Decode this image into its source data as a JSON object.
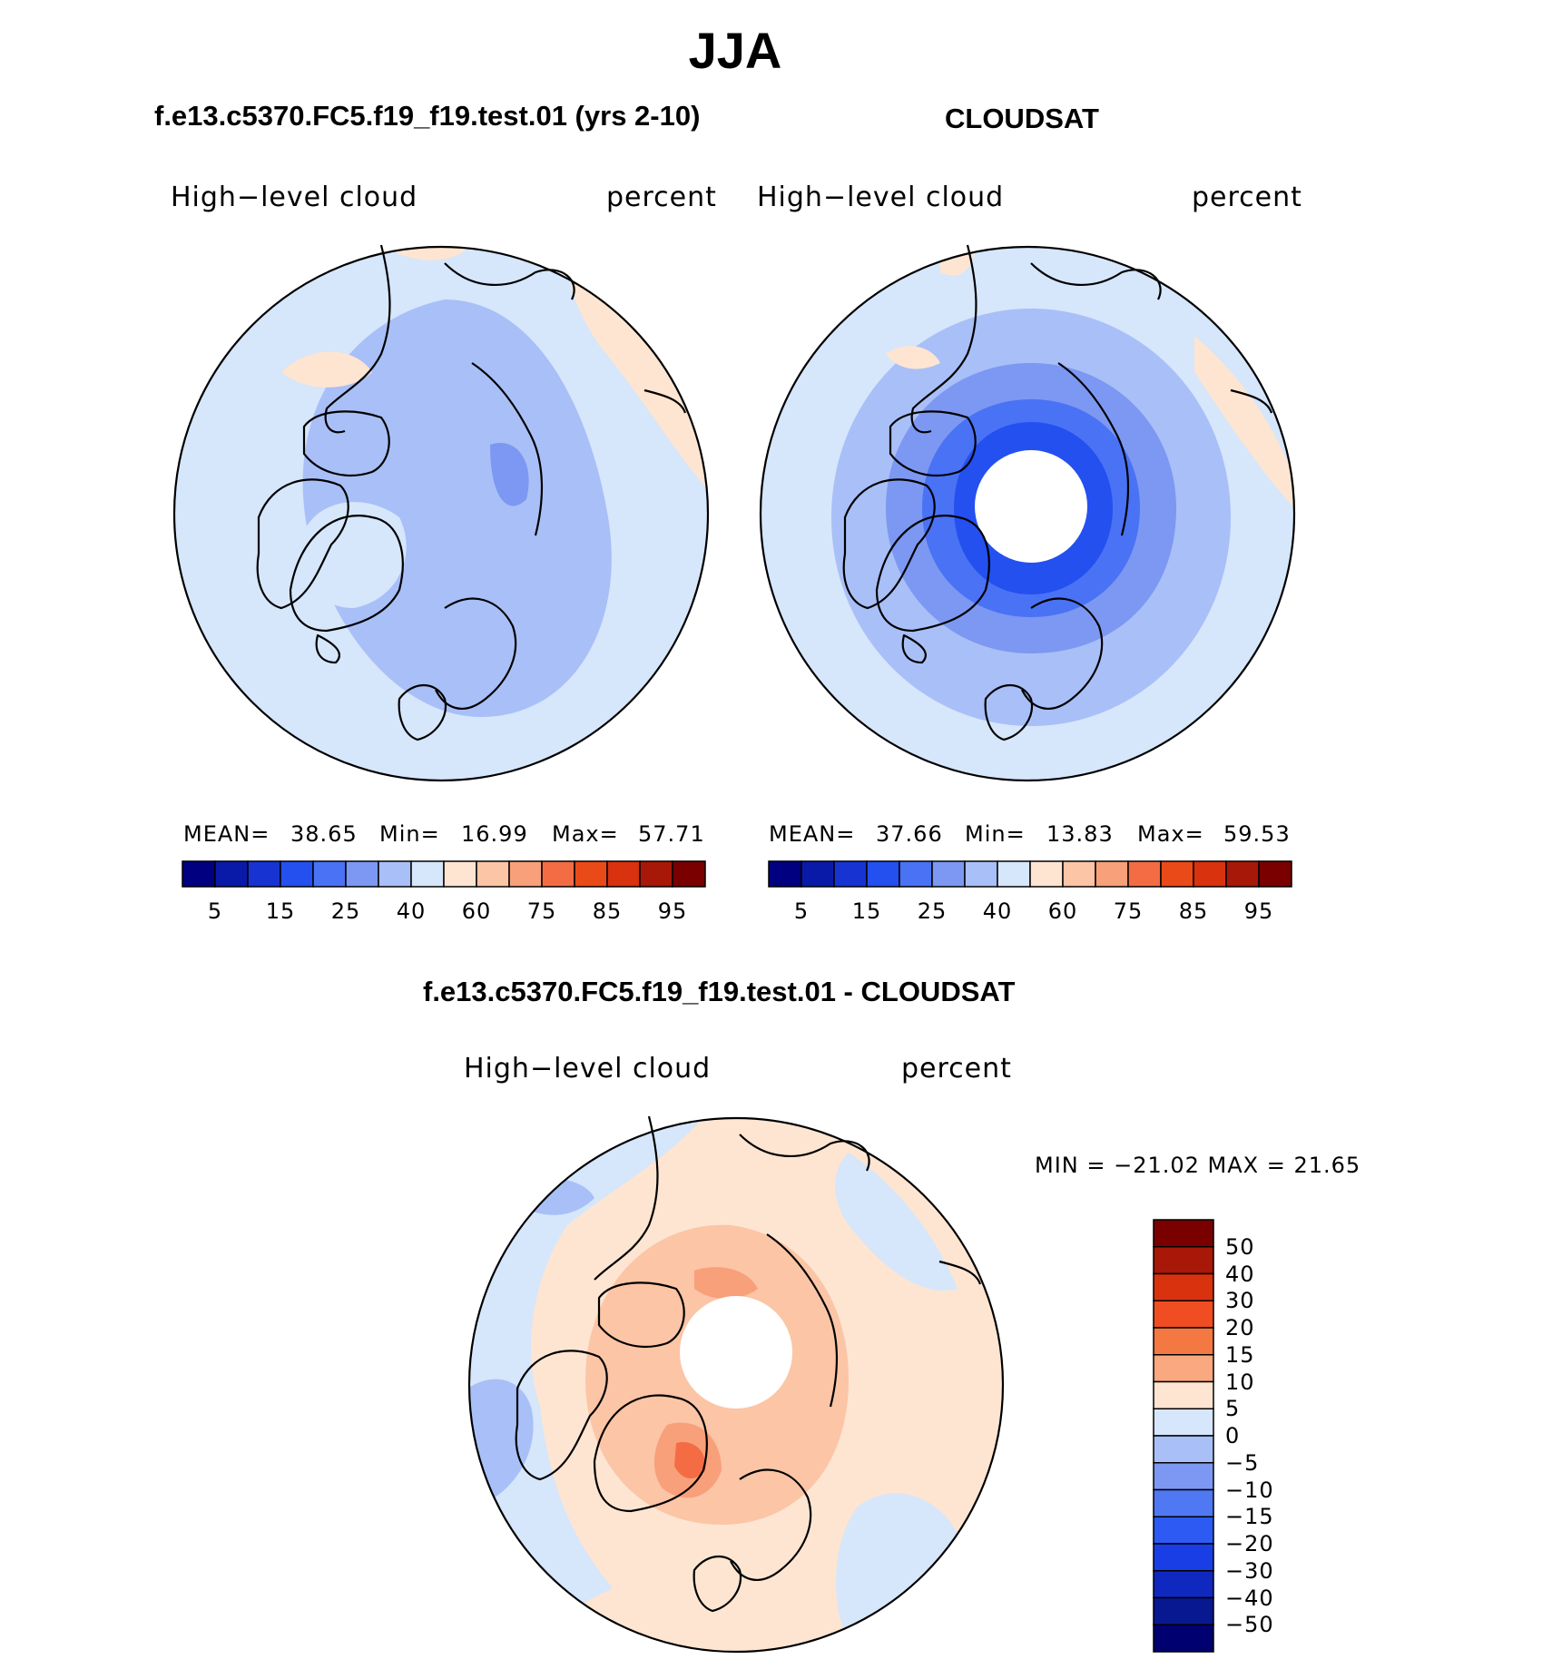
{
  "figure": {
    "season": "JJA"
  },
  "panels": [
    {
      "id": "model",
      "title": "f.e13.c5370.FC5.f19_f19.test.01 (yrs 2-10)",
      "variable": "High−level cloud",
      "units": "percent",
      "stats": {
        "mean_label": "MEAN=",
        "mean": "38.65",
        "min_label": "Min=",
        "min": "16.99",
        "max_label": "Max=",
        "max": "57.71"
      },
      "has_polar_hole": false
    },
    {
      "id": "obs",
      "title": "CLOUDSAT",
      "variable": "High−level cloud",
      "units": "percent",
      "stats": {
        "mean_label": "MEAN=",
        "mean": "37.66",
        "min_label": "Min=",
        "min": "13.83",
        "max_label": "Max=",
        "max": "59.53"
      },
      "has_polar_hole": true
    },
    {
      "id": "diff",
      "title": "f.e13.c5370.FC5.f19_f19.test.01 - CLOUDSAT",
      "variable": "High−level cloud",
      "units": "percent",
      "stats": {
        "text": "MIN = −21.02 MAX =   21.65"
      },
      "has_polar_hole": true
    }
  ],
  "colorbars": {
    "absolute": {
      "colors": [
        "#000080",
        "#0a1aa8",
        "#1734d2",
        "#2450f0",
        "#4a72f4",
        "#7c98f2",
        "#a9bff7",
        "#d6e6fb",
        "#fde5d2",
        "#fbc5a6",
        "#f8a07a",
        "#f46c44",
        "#ea4a18",
        "#d8320f",
        "#a81808",
        "#7a0000"
      ],
      "tick_labels": [
        "5",
        "15",
        "25",
        "40",
        "60",
        "75",
        "85",
        "95"
      ]
    },
    "difference": {
      "colors": [
        "#7a0000",
        "#a81808",
        "#d8320f",
        "#f04e22",
        "#f47842",
        "#f9a880",
        "#fde5d2",
        "#d6e6fb",
        "#a9bff7",
        "#7c98f2",
        "#5078f2",
        "#2c5af2",
        "#1a3ee6",
        "#0f28c0",
        "#081890",
        "#000070"
      ],
      "tick_labels": [
        "50",
        "40",
        "30",
        "20",
        "15",
        "10",
        "5",
        "0",
        "−5",
        "−10",
        "−15",
        "−20",
        "−30",
        "−40",
        "−50"
      ]
    }
  },
  "palette": {
    "light_blue": "#d6e6fb",
    "mid_blue": "#a9bff7",
    "blue": "#7c98f2",
    "dark_blue": "#4a72f4",
    "deep_blue": "#2450f0",
    "peach": "#fde5d2",
    "salmon": "#fbc5a6",
    "orange": "#f8a07a",
    "red_orange": "#f46c44"
  }
}
